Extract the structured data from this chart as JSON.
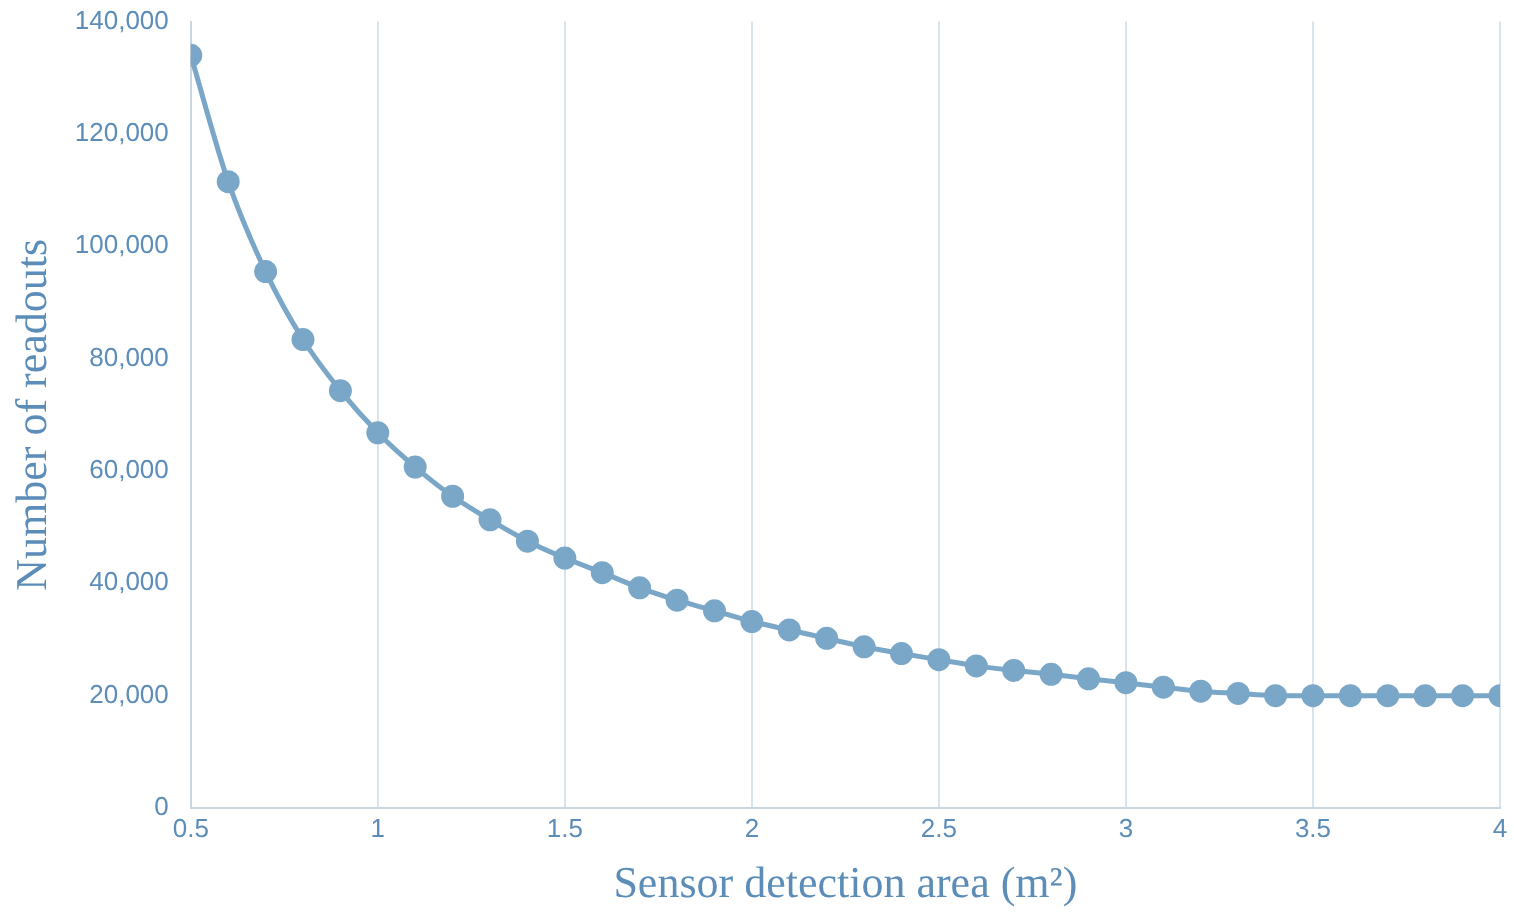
{
  "chart_data": {
    "type": "line",
    "xlabel": "Sensor detection area (m²)",
    "ylabel": "Number of readouts",
    "x": [
      0.5,
      0.6,
      0.7,
      0.8,
      0.9,
      1.0,
      1.1,
      1.2,
      1.3,
      1.4,
      1.5,
      1.6,
      1.7,
      1.8,
      1.9,
      2.0,
      2.1,
      2.2,
      2.3,
      2.4,
      2.5,
      2.6,
      2.7,
      2.8,
      2.9,
      3.0,
      3.1,
      3.2,
      3.3,
      3.4,
      3.5,
      3.6,
      3.7,
      3.8,
      3.9,
      4.0
    ],
    "series": [
      {
        "color": "#7aa7c7",
        "values": [
          134000,
          111500,
          95500,
          83400,
          74300,
          66800,
          60700,
          55500,
          51300,
          47500,
          44500,
          41900,
          39200,
          37000,
          35100,
          33200,
          31700,
          30200,
          28700,
          27500,
          26400,
          25300,
          24500,
          23800,
          23000,
          22300,
          21500,
          20800,
          20400,
          20000,
          20000,
          20000,
          20000,
          20000,
          20000,
          20000
        ]
      }
    ],
    "xlim": [
      0.5,
      4
    ],
    "xticks": [
      0.5,
      1,
      1.5,
      2,
      2.5,
      3,
      3.5,
      4
    ],
    "ylim": [
      0,
      140000
    ],
    "yticks": [
      0,
      {
        "value": 20000,
        "label": "20,000"
      },
      {
        "value": 40000,
        "label": "40,000"
      },
      {
        "value": 60000,
        "label": "60,000"
      },
      {
        "value": 80000,
        "label": "80,000"
      },
      {
        "value": 100000,
        "label": "100,000"
      },
      {
        "value": 120000,
        "label": "120,000"
      },
      {
        "value": 140000,
        "label": "140,000"
      }
    ],
    "grid": "x",
    "marker": "circle",
    "line_style": "solid",
    "legend": false
  }
}
